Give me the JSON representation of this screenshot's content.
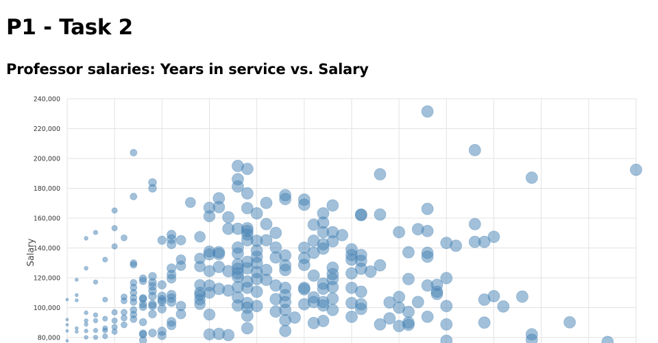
{
  "page": {
    "title": "P1 - Task 2",
    "subtitle": "Professor salaries: Years in service vs. Salary"
  },
  "chart_data": {
    "type": "scatter",
    "title": "",
    "xlabel": "",
    "ylabel": "Salary",
    "xlim": [
      0,
      60
    ],
    "ylim": [
      80000,
      240000
    ],
    "y_ticks": [
      "80,000",
      "100,000",
      "120,000",
      "140,000",
      "160,000",
      "180,000",
      "200,000",
      "220,000",
      "240,000"
    ],
    "grid": true,
    "color": "#4682b4",
    "size_encoding": "larger points toward higher years",
    "points": [
      [
        0,
        105400
      ],
      [
        0,
        92000
      ],
      [
        0,
        88500
      ],
      [
        0,
        84400
      ],
      [
        0,
        77800
      ],
      [
        1,
        118700
      ],
      [
        1,
        108400
      ],
      [
        1,
        104900
      ],
      [
        1,
        86200
      ],
      [
        1,
        83900
      ],
      [
        2,
        146500
      ],
      [
        2,
        126400
      ],
      [
        2,
        96600
      ],
      [
        2,
        91300
      ],
      [
        2,
        88800
      ],
      [
        2,
        84400
      ],
      [
        2,
        80100
      ],
      [
        3,
        150400
      ],
      [
        3,
        117200
      ],
      [
        3,
        95100
      ],
      [
        3,
        91300
      ],
      [
        3,
        84700
      ],
      [
        3,
        80100
      ],
      [
        4,
        132200
      ],
      [
        4,
        105400
      ],
      [
        4,
        92600
      ],
      [
        4,
        86200
      ],
      [
        4,
        84700
      ],
      [
        4,
        80800
      ],
      [
        5,
        165100
      ],
      [
        5,
        153300
      ],
      [
        5,
        141100
      ],
      [
        5,
        96900
      ],
      [
        5,
        91300
      ],
      [
        5,
        87000
      ],
      [
        5,
        83900
      ],
      [
        6,
        146800
      ],
      [
        6,
        107200
      ],
      [
        6,
        104600
      ],
      [
        6,
        96900
      ],
      [
        6,
        93100
      ],
      [
        6,
        88500
      ],
      [
        7,
        203900
      ],
      [
        7,
        174500
      ],
      [
        7,
        129900
      ],
      [
        7,
        128700
      ],
      [
        7,
        116700
      ],
      [
        7,
        113500
      ],
      [
        7,
        110000
      ],
      [
        7,
        106600
      ],
      [
        7,
        103800
      ],
      [
        7,
        98500
      ],
      [
        7,
        95400
      ],
      [
        7,
        92300
      ],
      [
        8,
        119600
      ],
      [
        8,
        117900
      ],
      [
        8,
        106400
      ],
      [
        8,
        105800
      ],
      [
        8,
        102300
      ],
      [
        8,
        100500
      ],
      [
        8,
        90300
      ],
      [
        8,
        82700
      ],
      [
        8,
        82100
      ],
      [
        8,
        78100
      ],
      [
        9,
        183900
      ],
      [
        9,
        180000
      ],
      [
        9,
        121000
      ],
      [
        9,
        116900
      ],
      [
        9,
        114300
      ],
      [
        9,
        111200
      ],
      [
        9,
        107700
      ],
      [
        9,
        102300
      ],
      [
        9,
        101100
      ],
      [
        9,
        95700
      ],
      [
        9,
        83100
      ],
      [
        10,
        145200
      ],
      [
        10,
        115300
      ],
      [
        10,
        107700
      ],
      [
        10,
        105400
      ],
      [
        10,
        104100
      ],
      [
        10,
        99200
      ],
      [
        10,
        84200
      ],
      [
        10,
        81300
      ],
      [
        11,
        148900
      ],
      [
        11,
        146000
      ],
      [
        11,
        142500
      ],
      [
        11,
        126400
      ],
      [
        11,
        122200
      ],
      [
        11,
        119500
      ],
      [
        11,
        108700
      ],
      [
        11,
        106400
      ],
      [
        11,
        103800
      ],
      [
        11,
        90500
      ],
      [
        11,
        88200
      ],
      [
        12,
        145200
      ],
      [
        12,
        132200
      ],
      [
        12,
        128100
      ],
      [
        12,
        101100
      ],
      [
        12,
        95700
      ],
      [
        13,
        170500
      ],
      [
        14,
        147500
      ],
      [
        14,
        133000
      ],
      [
        14,
        127600
      ],
      [
        14,
        115300
      ],
      [
        14,
        110300
      ],
      [
        14,
        108400
      ],
      [
        14,
        105400
      ],
      [
        14,
        102300
      ],
      [
        15,
        167000
      ],
      [
        15,
        161300
      ],
      [
        15,
        137600
      ],
      [
        15,
        135700
      ],
      [
        15,
        124500
      ],
      [
        15,
        114900
      ],
      [
        15,
        110000
      ],
      [
        15,
        95400
      ],
      [
        15,
        82100
      ],
      [
        16,
        173300
      ],
      [
        16,
        167400
      ],
      [
        16,
        137200
      ],
      [
        16,
        136000
      ],
      [
        16,
        127300
      ],
      [
        16,
        112600
      ],
      [
        16,
        82400
      ],
      [
        17,
        160600
      ],
      [
        17,
        152900
      ],
      [
        17,
        124500
      ],
      [
        17,
        111500
      ],
      [
        17,
        81600
      ],
      [
        18,
        195000
      ],
      [
        18,
        186100
      ],
      [
        18,
        181200
      ],
      [
        18,
        152900
      ],
      [
        18,
        140300
      ],
      [
        18,
        136300
      ],
      [
        18,
        129100
      ],
      [
        18,
        126100
      ],
      [
        18,
        123000
      ],
      [
        18,
        120700
      ],
      [
        18,
        113800
      ],
      [
        18,
        106900
      ],
      [
        18,
        101500
      ],
      [
        19,
        193000
      ],
      [
        19,
        176600
      ],
      [
        19,
        166700
      ],
      [
        19,
        153200
      ],
      [
        19,
        151400
      ],
      [
        19,
        149000
      ],
      [
        19,
        145200
      ],
      [
        19,
        130700
      ],
      [
        19,
        126400
      ],
      [
        19,
        117600
      ],
      [
        19,
        113300
      ],
      [
        19,
        103100
      ],
      [
        19,
        100000
      ],
      [
        19,
        94600
      ],
      [
        19,
        86200
      ],
      [
        20,
        163200
      ],
      [
        20,
        144800
      ],
      [
        20,
        138300
      ],
      [
        20,
        134100
      ],
      [
        20,
        129900
      ],
      [
        20,
        123800
      ],
      [
        20,
        119200
      ],
      [
        20,
        110700
      ],
      [
        20,
        101100
      ],
      [
        21,
        170200
      ],
      [
        21,
        156000
      ],
      [
        21,
        145200
      ],
      [
        21,
        125300
      ],
      [
        21,
        118700
      ],
      [
        22,
        150100
      ],
      [
        22,
        140300
      ],
      [
        22,
        133700
      ],
      [
        22,
        114900
      ],
      [
        22,
        105700
      ],
      [
        22,
        97400
      ],
      [
        23,
        175400
      ],
      [
        23,
        172800
      ],
      [
        23,
        135000
      ],
      [
        23,
        128400
      ],
      [
        23,
        125300
      ],
      [
        23,
        113300
      ],
      [
        23,
        108400
      ],
      [
        23,
        103800
      ],
      [
        23,
        98500
      ],
      [
        23,
        91600
      ],
      [
        23,
        84400
      ],
      [
        24,
        93400
      ],
      [
        25,
        172400
      ],
      [
        25,
        169000
      ],
      [
        25,
        140200
      ],
      [
        25,
        133300
      ],
      [
        25,
        128700
      ],
      [
        25,
        113300
      ],
      [
        25,
        112300
      ],
      [
        25,
        102300
      ],
      [
        26,
        155600
      ],
      [
        26,
        144900
      ],
      [
        26,
        136800
      ],
      [
        26,
        121500
      ],
      [
        26,
        106900
      ],
      [
        26,
        103800
      ],
      [
        26,
        89700
      ],
      [
        27,
        163200
      ],
      [
        27,
        157000
      ],
      [
        27,
        150600
      ],
      [
        27,
        142500
      ],
      [
        27,
        139600
      ],
      [
        27,
        116100
      ],
      [
        27,
        112700
      ],
      [
        27,
        103800
      ],
      [
        27,
        101500
      ],
      [
        27,
        91100
      ],
      [
        28,
        168500
      ],
      [
        28,
        150600
      ],
      [
        28,
        144500
      ],
      [
        28,
        126800
      ],
      [
        28,
        122500
      ],
      [
        28,
        119200
      ],
      [
        28,
        113800
      ],
      [
        28,
        106100
      ],
      [
        28,
        98500
      ],
      [
        29,
        148600
      ],
      [
        30,
        139100
      ],
      [
        30,
        135300
      ],
      [
        30,
        132200
      ],
      [
        30,
        123000
      ],
      [
        30,
        113300
      ],
      [
        30,
        103100
      ],
      [
        30,
        93900
      ],
      [
        31,
        162400
      ],
      [
        31,
        162000
      ],
      [
        31,
        135300
      ],
      [
        31,
        131400
      ],
      [
        31,
        126100
      ],
      [
        31,
        110700
      ],
      [
        31,
        102300
      ],
      [
        31,
        99200
      ],
      [
        32,
        124200
      ],
      [
        33,
        189400
      ],
      [
        33,
        162400
      ],
      [
        33,
        128400
      ],
      [
        33,
        88800
      ],
      [
        34,
        103500
      ],
      [
        34,
        92800
      ],
      [
        35,
        150600
      ],
      [
        35,
        107200
      ],
      [
        35,
        100000
      ],
      [
        35,
        87700
      ],
      [
        36,
        137100
      ],
      [
        36,
        119200
      ],
      [
        36,
        97200
      ],
      [
        36,
        90000
      ],
      [
        36,
        88500
      ],
      [
        37,
        152600
      ],
      [
        37,
        103800
      ],
      [
        38,
        231500
      ],
      [
        38,
        166200
      ],
      [
        38,
        151400
      ],
      [
        38,
        136800
      ],
      [
        38,
        134200
      ],
      [
        38,
        114900
      ],
      [
        38,
        93900
      ],
      [
        39,
        115300
      ],
      [
        39,
        110700
      ],
      [
        39,
        109200
      ],
      [
        40,
        143400
      ],
      [
        40,
        119800
      ],
      [
        40,
        101100
      ],
      [
        40,
        88800
      ],
      [
        40,
        77800
      ],
      [
        41,
        141500
      ],
      [
        43,
        205600
      ],
      [
        43,
        156000
      ],
      [
        43,
        144100
      ],
      [
        44,
        144100
      ],
      [
        44,
        105400
      ],
      [
        44,
        90000
      ],
      [
        45,
        147500
      ],
      [
        45,
        107700
      ],
      [
        46,
        100800
      ],
      [
        48,
        107400
      ],
      [
        49,
        187100
      ],
      [
        49,
        82100
      ],
      [
        49,
        78500
      ],
      [
        53,
        90200
      ],
      [
        57,
        77000
      ],
      [
        60,
        192400
      ]
    ]
  }
}
